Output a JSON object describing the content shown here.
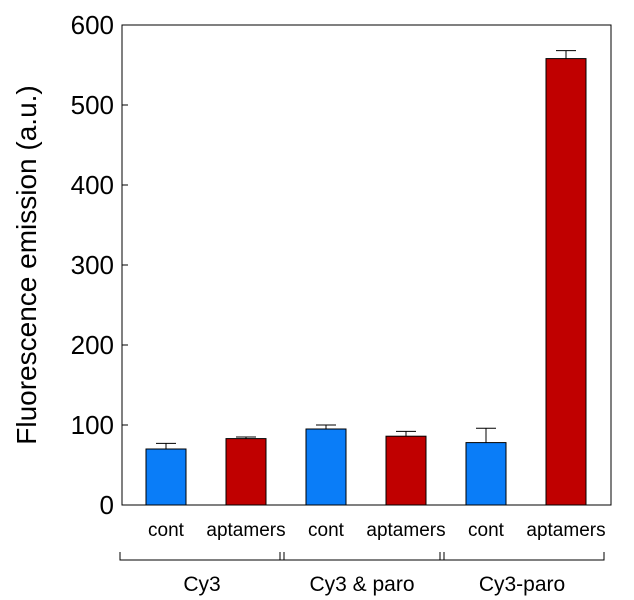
{
  "chart_data": {
    "type": "bar",
    "ylabel": "Fluorescence emission (a.u.)",
    "xlabel": "",
    "title": "",
    "ylim": [
      0,
      600
    ],
    "yticks": [
      0,
      100,
      200,
      300,
      400,
      500,
      600
    ],
    "grid": false,
    "categories": [
      "cont",
      "aptamers",
      "cont",
      "aptamers",
      "cont",
      "aptamers"
    ],
    "values": [
      70,
      83,
      95,
      86,
      78,
      558
    ],
    "errors": [
      7,
      2,
      5,
      6,
      18,
      10
    ],
    "bar_colors": [
      "#0a7df8",
      "#c00000",
      "#0a7df8",
      "#c00000",
      "#0a7df8",
      "#c00000"
    ],
    "groups": [
      {
        "label": "Cy3",
        "members": [
          0,
          1
        ]
      },
      {
        "label": "Cy3 & paro",
        "members": [
          2,
          3
        ]
      },
      {
        "label": "Cy3-paro",
        "members": [
          4,
          5
        ]
      }
    ]
  }
}
